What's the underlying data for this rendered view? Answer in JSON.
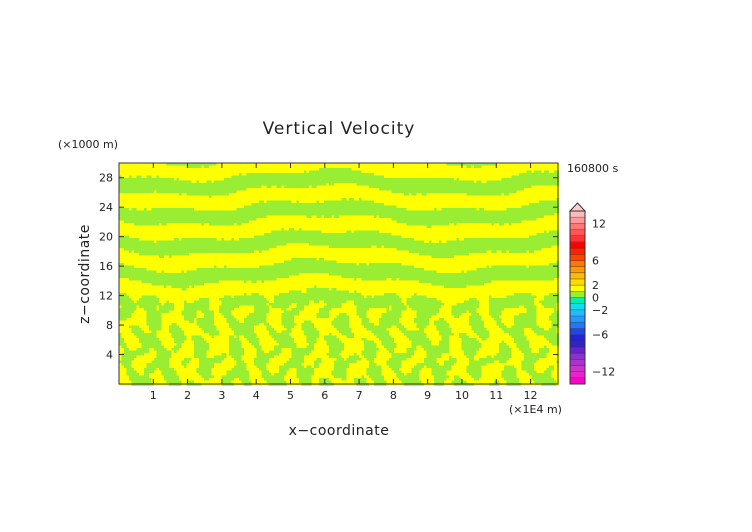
{
  "chart_data": {
    "type": "heatmap",
    "title": "Vertical Velocity",
    "xlabel": "x−coordinate",
    "ylabel": "z−coordinate",
    "x_unit": "(×1E4 m)",
    "y_unit": "(×1000 m)",
    "time_label": "160800 s",
    "xlim": [
      0,
      12.8
    ],
    "ylim": [
      0,
      30
    ],
    "x_ticks": [
      1,
      2,
      3,
      4,
      5,
      6,
      7,
      8,
      9,
      10,
      11,
      12
    ],
    "y_ticks": [
      4,
      8,
      12,
      16,
      20,
      24,
      28
    ],
    "field_colors": {
      "positive": "#ffff00",
      "negative": "#99ee33"
    },
    "colorbar": {
      "levels": [
        -14,
        -13,
        -12,
        -11,
        -10,
        -9,
        -8,
        -7,
        -6,
        -5,
        -4,
        -3,
        -2,
        -1,
        0,
        1,
        2,
        3,
        4,
        5,
        6,
        7,
        8,
        9,
        10,
        11,
        12,
        13,
        14
      ],
      "colors": [
        "#ff00cc",
        "#ee22cc",
        "#cc33cc",
        "#aa33cc",
        "#8833cc",
        "#6622cc",
        "#3322cc",
        "#2222dd",
        "#2244ee",
        "#2277ff",
        "#2299ff",
        "#22bbff",
        "#11ddee",
        "#00eeaa",
        "#99ee33",
        "#ffff00",
        "#ffdd00",
        "#ffbb00",
        "#ff9900",
        "#ff7700",
        "#ff4400",
        "#ff2200",
        "#ff0000",
        "#ff3333",
        "#ff5555",
        "#ff7777",
        "#ff9999",
        "#ffbbbb"
      ],
      "tick_values": [
        -12,
        -6,
        -2,
        0,
        2,
        6,
        12
      ],
      "tick_labels": [
        "−12",
        "−6",
        "−2",
        "0",
        "2",
        "6",
        "12"
      ],
      "extend": "max",
      "extend_color": "#ffcccc"
    }
  }
}
